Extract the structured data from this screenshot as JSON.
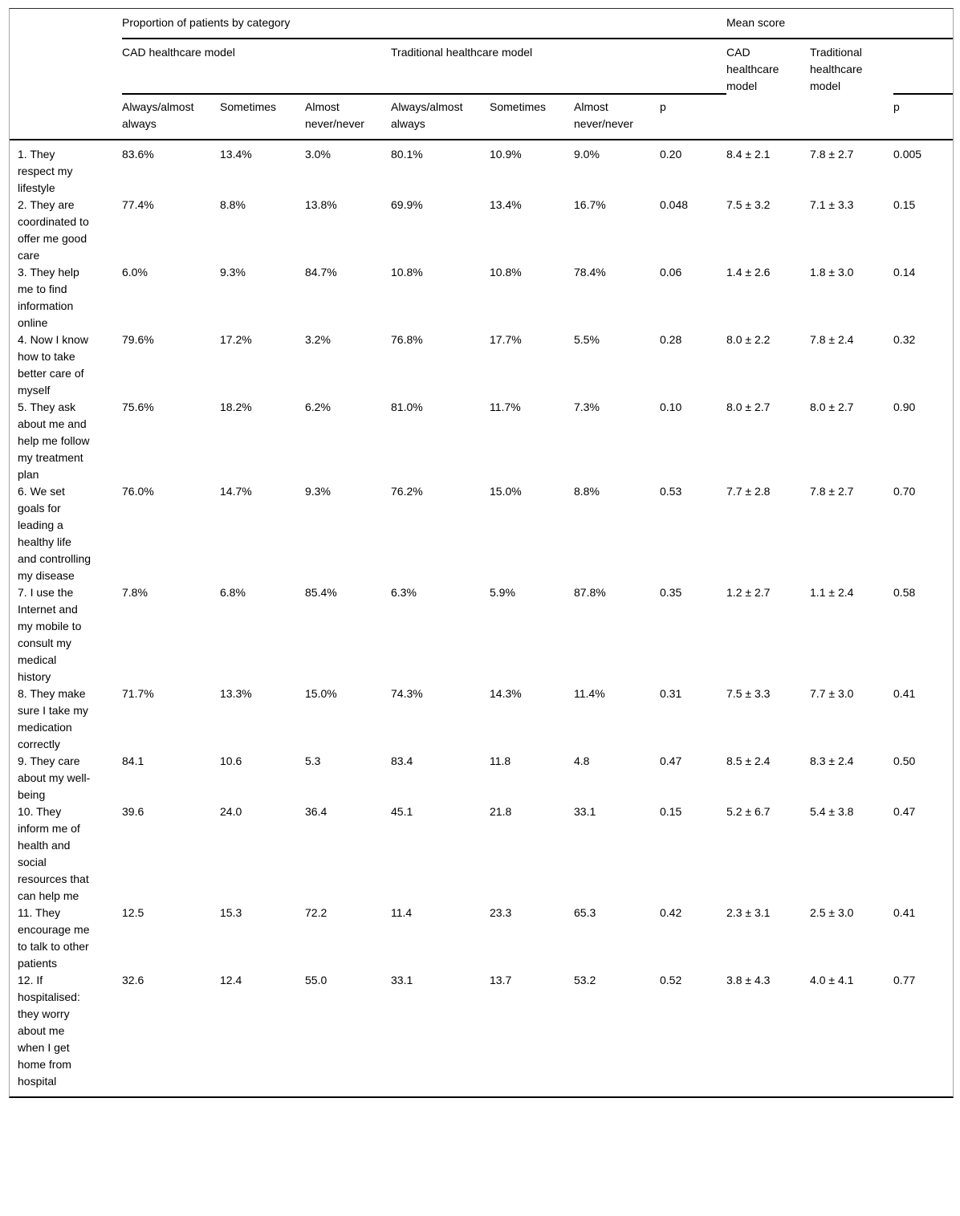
{
  "table": {
    "header": {
      "group_proportion": "Proportion of patients by category",
      "group_mean": "Mean score",
      "cad_model": "CAD healthcare model",
      "traditional_model": "Traditional healthcare model",
      "mean_cad_model": "CAD healthcare model",
      "mean_traditional_model": "Traditional healthcare model",
      "always": "Always/almost always",
      "sometimes": "Sometimes",
      "never": "Almost never/never",
      "p": "p",
      "mean_p": "p"
    },
    "rows": [
      {
        "question": "1. They respect my lifestyle",
        "values": [
          "83.6%",
          "13.4%",
          "3.0%",
          "80.1%",
          "10.9%",
          "9.0%",
          "0.20",
          "8.4 ± 2.1",
          "7.8 ± 2.7",
          "0.005"
        ]
      },
      {
        "question": "2. They are coordinated to offer me good care",
        "values": [
          "77.4%",
          "8.8%",
          "13.8%",
          "69.9%",
          "13.4%",
          "16.7%",
          "0.048",
          "7.5 ± 3.2",
          "7.1 ± 3.3",
          "0.15"
        ]
      },
      {
        "question": "3. They help me to find information online",
        "values": [
          "6.0%",
          "9.3%",
          "84.7%",
          "10.8%",
          "10.8%",
          "78.4%",
          "0.06",
          "1.4 ± 2.6",
          "1.8 ± 3.0",
          "0.14"
        ]
      },
      {
        "question": "4. Now I know how to take better care of myself",
        "values": [
          "79.6%",
          "17.2%",
          "3.2%",
          "76.8%",
          "17.7%",
          "5.5%",
          "0.28",
          "8.0 ± 2.2",
          "7.8 ± 2.4",
          "0.32"
        ]
      },
      {
        "question": "5. They ask about me and help me follow my treatment plan",
        "values": [
          "75.6%",
          "18.2%",
          "6.2%",
          "81.0%",
          "11.7%",
          "7.3%",
          "0.10",
          "8.0 ± 2.7",
          "8.0 ± 2.7",
          "0.90"
        ]
      },
      {
        "question": "6. We set goals for leading a healthy life and controlling my disease",
        "values": [
          "76.0%",
          "14.7%",
          "9.3%",
          "76.2%",
          "15.0%",
          "8.8%",
          "0.53",
          "7.7 ± 2.8",
          "7.8 ± 2.7",
          "0.70"
        ]
      },
      {
        "question": "7. I use the Internet and my mobile to consult my medical history",
        "values": [
          "7.8%",
          "6.8%",
          "85.4%",
          "6.3%",
          "5.9%",
          "87.8%",
          "0.35",
          "1.2 ± 2.7",
          "1.1 ± 2.4",
          "0.58"
        ]
      },
      {
        "question": "8. They make sure I take my medication correctly",
        "values": [
          "71.7%",
          "13.3%",
          "15.0%",
          "74.3%",
          "14.3%",
          "11.4%",
          "0.31",
          "7.5 ± 3.3",
          "7.7 ± 3.0",
          "0.41"
        ]
      },
      {
        "question": "9. They care about my well-being",
        "values": [
          "84.1",
          "10.6",
          "5.3",
          "83.4",
          "11.8",
          "4.8",
          "0.47",
          "8.5 ± 2.4",
          "8.3 ± 2.4",
          "0.50"
        ]
      },
      {
        "question": "10. They inform me of health and social resources that can help me",
        "values": [
          "39.6",
          "24.0",
          "36.4",
          "45.1",
          "21.8",
          "33.1",
          "0.15",
          "5.2 ± 6.7",
          "5.4 ± 3.8",
          "0.47"
        ]
      },
      {
        "question": "11. They encourage me to talk to other patients",
        "values": [
          "12.5",
          "15.3",
          "72.2",
          "11.4",
          "23.3",
          "65.3",
          "0.42",
          "2.3 ± 3.1",
          "2.5 ± 3.0",
          "0.41"
        ]
      },
      {
        "question": "12. If hospitalised: they worry about me when I get home from hospital",
        "values": [
          "32.6",
          "12.4",
          "55.0",
          "33.1",
          "13.7",
          "53.2",
          "0.52",
          "3.8 ± 4.3",
          "4.0 ± 4.1",
          "0.77"
        ]
      }
    ]
  }
}
